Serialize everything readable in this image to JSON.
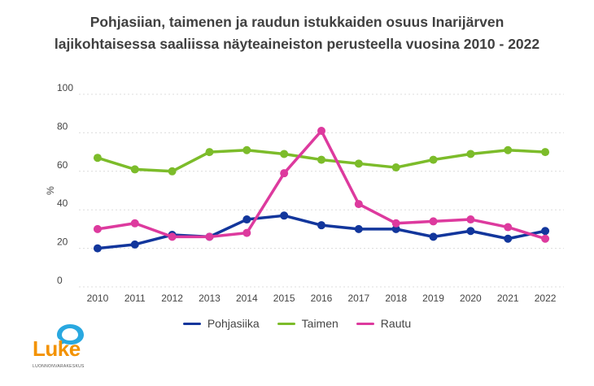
{
  "chart_data": {
    "type": "line",
    "title_line1": "Pohjasiian, taimenen ja raudun istukkaiden osuus Inarijärven",
    "title_line2": "lajikohtaisessa saaliissa näyteaineiston perusteella vuosina 2010 - 2022",
    "ylabel": "%",
    "xlabel": "",
    "ylim": [
      0,
      100
    ],
    "yticks": [
      0,
      20,
      40,
      60,
      80,
      100
    ],
    "categories": [
      "2010",
      "2011",
      "2012",
      "2013",
      "2014",
      "2015",
      "2016",
      "2017",
      "2018",
      "2019",
      "2020",
      "2021",
      "2022"
    ],
    "grid": "horizontal",
    "legend_position": "bottom",
    "series": [
      {
        "name": "Pohjasiika",
        "color": "#12369c",
        "values": [
          20,
          22,
          27,
          26,
          35,
          37,
          32,
          30,
          30,
          26,
          29,
          25,
          29
        ]
      },
      {
        "name": "Taimen",
        "color": "#7cbc2a",
        "values": [
          67,
          61,
          60,
          70,
          71,
          69,
          66,
          64,
          62,
          66,
          69,
          71,
          70
        ]
      },
      {
        "name": "Rautu",
        "color": "#dd3a9e",
        "values": [
          30,
          33,
          26,
          26,
          28,
          59,
          81,
          43,
          33,
          34,
          35,
          31,
          25
        ]
      }
    ]
  },
  "logo": {
    "text": "Luke",
    "subtitle": "LUONNONVARAKESKUS",
    "color": "#f39200"
  }
}
